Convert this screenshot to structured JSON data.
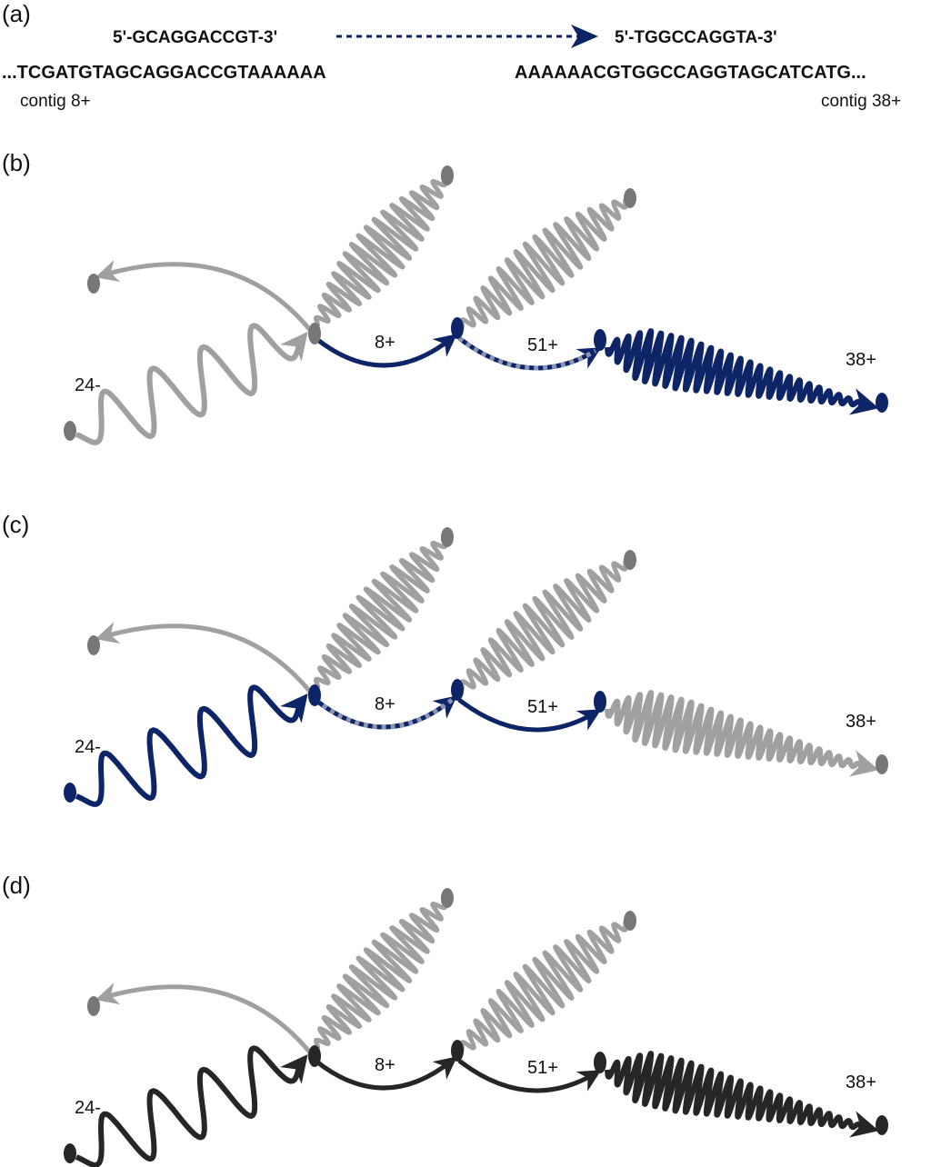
{
  "panel_a": {
    "label": "(a)",
    "primer_forward": "5'-GCAGGACCGT-3'",
    "primer_reverse": "5'-TGGCCAGGTA-3'",
    "seq_left": "...TCGATGTAGCAGGACCGTAAAAAA",
    "seq_right": "AAAAAACGTGGCCAGGTAGCATCATG...",
    "contig_left": "contig 8+",
    "contig_right": "contig 38+"
  },
  "panels": [
    {
      "label": "(b)",
      "nodes": {
        "n24": "24-",
        "n8": "8+",
        "n51": "51+",
        "n38": "38+"
      },
      "colors": {
        "c24": "#a0a0a0",
        "c8": "#0d2466",
        "c51": "#0d2466",
        "c38": "#0d2466"
      },
      "dashed": {
        "e8": false,
        "e51": true
      }
    },
    {
      "label": "(c)",
      "nodes": {
        "n24": "24-",
        "n8": "8+",
        "n51": "51+",
        "n38": "38+"
      },
      "colors": {
        "c24": "#0d2466",
        "c8": "#0d2466",
        "c51": "#0d2466",
        "c38": "#a0a0a0"
      },
      "dashed": {
        "e8": true,
        "e51": false
      }
    },
    {
      "label": "(d)",
      "nodes": {
        "n24": "24-",
        "n8": "8+",
        "n51": "51+",
        "n38": "38+"
      },
      "colors": {
        "c24": "#262626",
        "c8": "#262626",
        "c51": "#262626",
        "c38": "#262626"
      },
      "dashed": {
        "e8": false,
        "e51": false
      }
    }
  ],
  "colors": {
    "gray": "#a0a0a0",
    "node_gray": "#777777",
    "navy": "#0d2466"
  }
}
